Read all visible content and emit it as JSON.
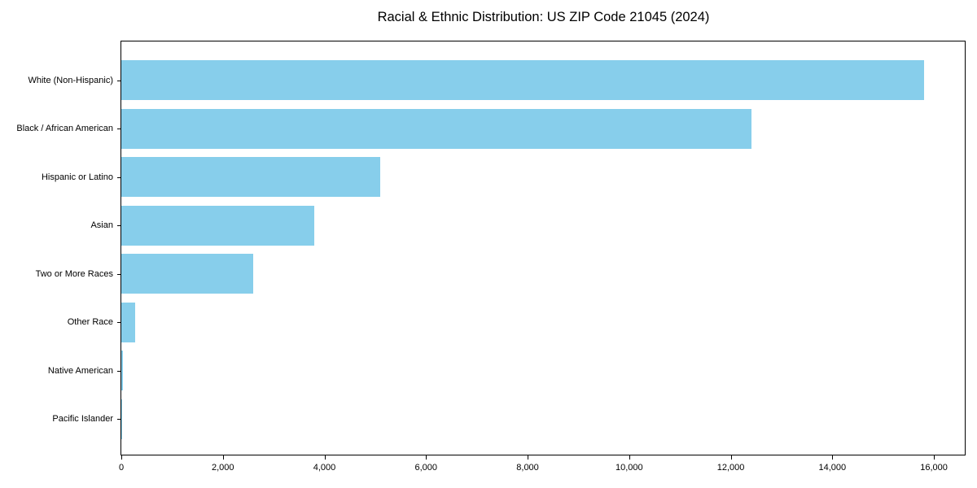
{
  "chart_data": {
    "type": "bar",
    "orientation": "horizontal",
    "title": "Racial & Ethnic Distribution: US ZIP Code 21045 (2024)",
    "categories": [
      "White (Non-Hispanic)",
      "Black / African American",
      "Hispanic or Latino",
      "Asian",
      "Two or More Races",
      "Other Race",
      "Native American",
      "Pacific Islander"
    ],
    "values": [
      15800,
      12400,
      5100,
      3800,
      2600,
      280,
      30,
      10
    ],
    "xlabel": "",
    "ylabel": "",
    "xlim": [
      0,
      16640
    ],
    "x_ticks": [
      0,
      2000,
      4000,
      6000,
      8000,
      10000,
      12000,
      14000,
      16000
    ],
    "x_tick_labels": [
      "0",
      "2,000",
      "4,000",
      "6,000",
      "8,000",
      "10,000",
      "12,000",
      "14,000",
      "16,000"
    ],
    "bar_color": "#87CEEB",
    "axis_color": "#000000",
    "background_color": "#ffffff",
    "grid": false,
    "legend": null
  }
}
